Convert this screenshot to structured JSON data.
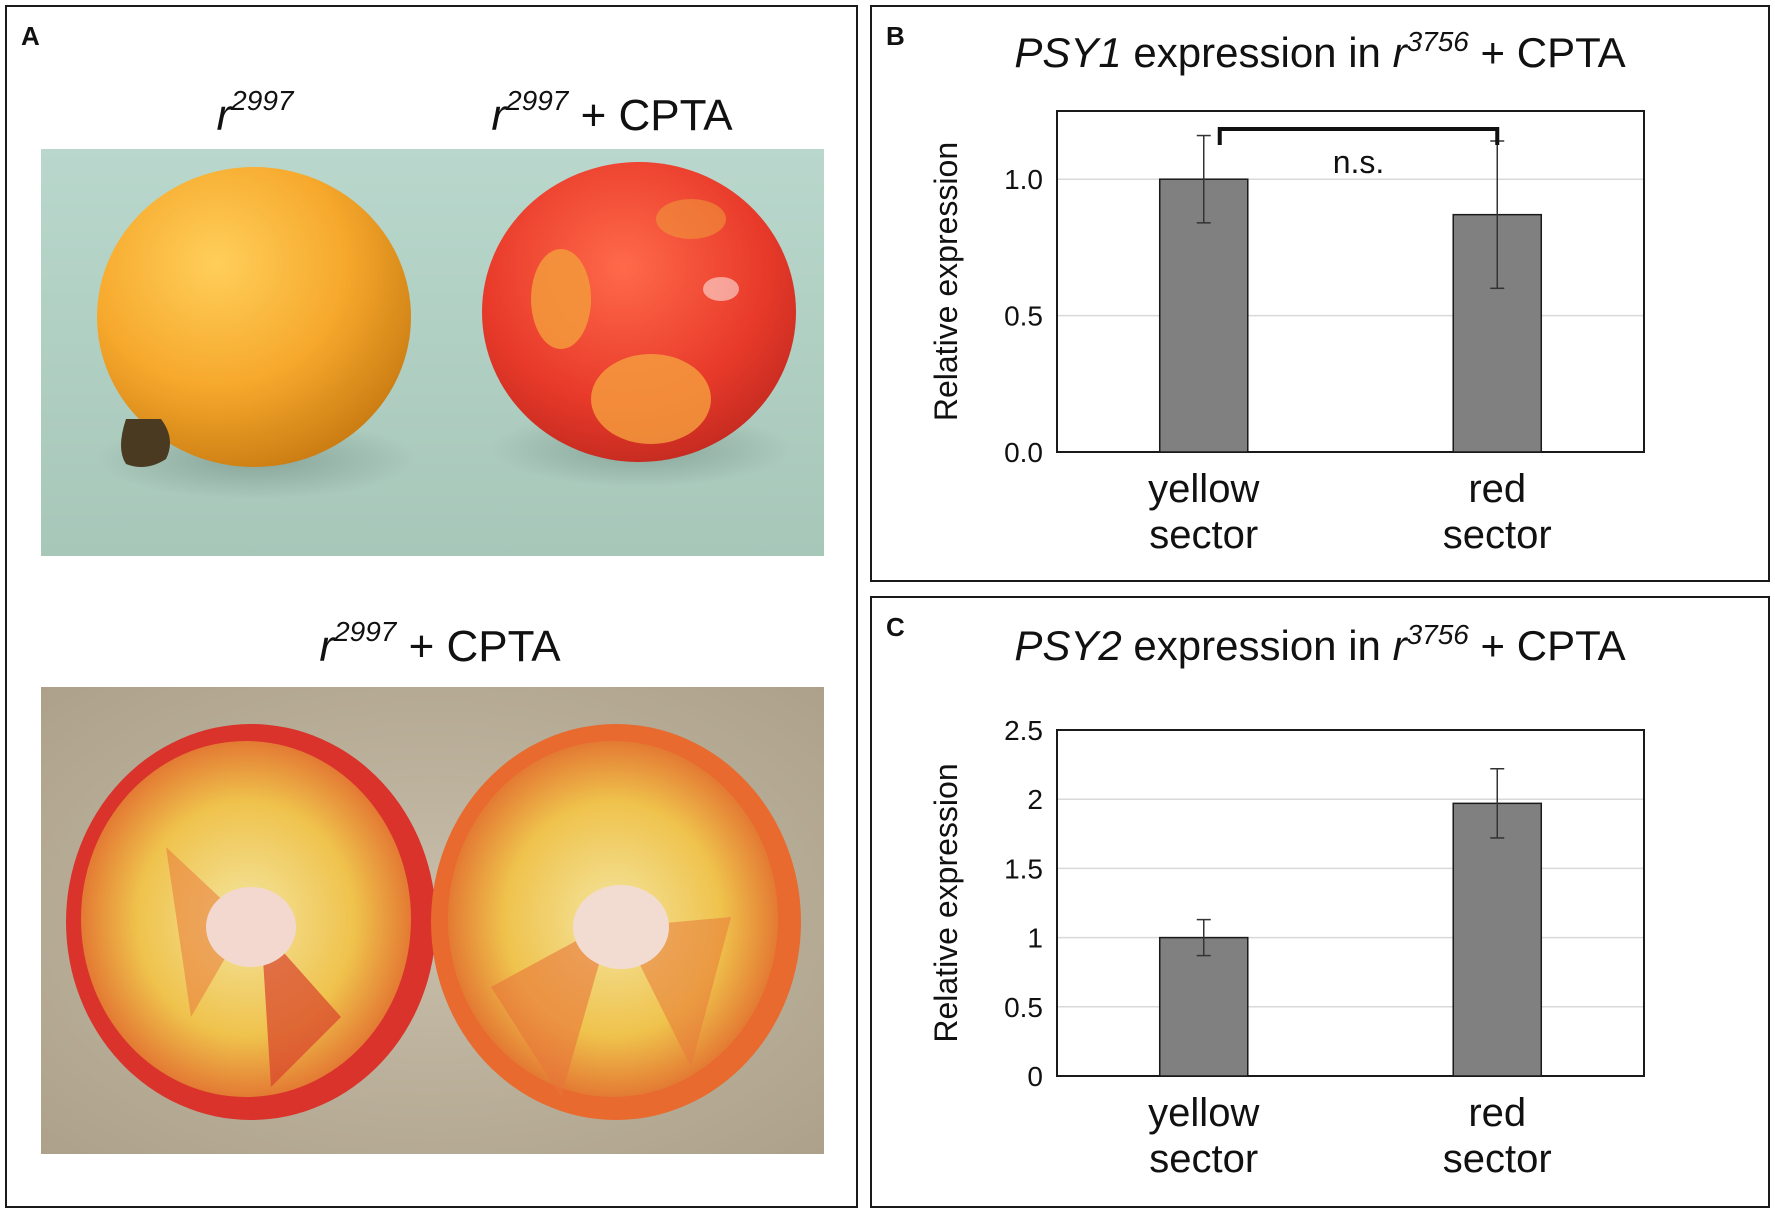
{
  "panelA": {
    "letter": "A",
    "labels": {
      "top_left": {
        "genotype": "r",
        "allele": "2997",
        "suffix": ""
      },
      "top_right": {
        "genotype": "r",
        "allele": "2997",
        "suffix": " + CPTA"
      },
      "bottom": {
        "genotype": "r",
        "allele": "2997",
        "suffix": " + CPTA"
      }
    }
  },
  "panelB": {
    "letter": "B",
    "title": {
      "gene": "PSY1",
      "mid": " expression in ",
      "genotype": "r",
      "allele": "3756",
      "suffix": " + CPTA"
    },
    "significance": "n.s."
  },
  "panelC": {
    "letter": "C",
    "title": {
      "gene": "PSY2",
      "mid": " expression in ",
      "genotype": "r",
      "allele": "3756",
      "suffix": " + CPTA"
    }
  },
  "colors": {
    "bar": "#808080",
    "bar_stroke": "#1a1a1a",
    "grid": "#d9d9d9"
  },
  "chart_data": [
    {
      "type": "bar",
      "panel": "B",
      "title": "PSY1 expression in r3756 + CPTA",
      "ylabel": "Relative expression",
      "categories": [
        [
          "yellow",
          "sector"
        ],
        [
          "red",
          "sector"
        ]
      ],
      "values": [
        1.0,
        0.87
      ],
      "errors": [
        0.16,
        0.27
      ],
      "ylim": [
        0.0,
        1.25
      ],
      "yticks": [
        0.0,
        0.5,
        1.0
      ],
      "ytick_labels": [
        "0.0",
        "0.5",
        "1.0"
      ],
      "grid": true,
      "annotation": "n.s."
    },
    {
      "type": "bar",
      "panel": "C",
      "title": "PSY2 expression in r3756 + CPTA",
      "ylabel": "Relative expression",
      "categories": [
        [
          "yellow",
          "sector"
        ],
        [
          "red",
          "sector"
        ]
      ],
      "values": [
        1.0,
        1.97
      ],
      "errors": [
        0.13,
        0.25
      ],
      "ylim": [
        0,
        2.5
      ],
      "yticks": [
        0,
        0.5,
        1,
        1.5,
        2,
        2.5
      ],
      "ytick_labels": [
        "0",
        "0.5",
        "1",
        "1.5",
        "2",
        "2.5"
      ],
      "grid": true
    }
  ]
}
